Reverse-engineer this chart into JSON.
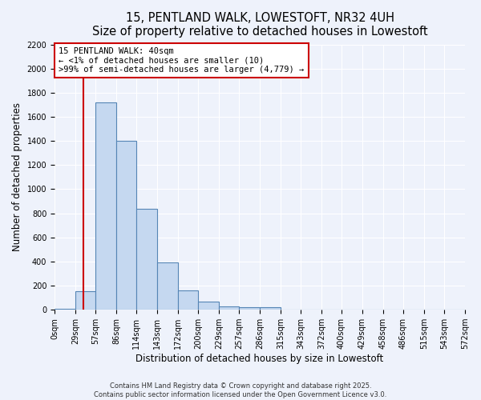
{
  "title_line1": "15, PENTLAND WALK, LOWESTOFT, NR32 4UH",
  "title_line2": "Size of property relative to detached houses in Lowestoft",
  "xlabel": "Distribution of detached houses by size in Lowestoft",
  "ylabel": "Number of detached properties",
  "bin_edges": [
    0,
    29,
    57,
    86,
    114,
    143,
    172,
    200,
    229,
    257,
    286,
    315,
    343,
    372,
    400,
    429,
    458,
    486,
    515,
    543,
    572
  ],
  "bar_heights": [
    10,
    155,
    1720,
    1400,
    835,
    395,
    160,
    65,
    30,
    20,
    20,
    0,
    0,
    0,
    0,
    0,
    0,
    0,
    0,
    0
  ],
  "bar_color": "#c5d8f0",
  "bar_edge_color": "#5585b5",
  "property_size": 40,
  "red_line_color": "#cc0000",
  "ylim": [
    0,
    2200
  ],
  "yticks": [
    0,
    200,
    400,
    600,
    800,
    1000,
    1200,
    1400,
    1600,
    1800,
    2000,
    2200
  ],
  "annotation_text": "15 PENTLAND WALK: 40sqm\n← <1% of detached houses are smaller (10)\n>99% of semi-detached houses are larger (4,779) →",
  "annotation_box_color": "#ffffff",
  "annotation_box_edge_color": "#cc0000",
  "background_color": "#eef2fb",
  "grid_color": "#ffffff",
  "footer_line1": "Contains HM Land Registry data © Crown copyright and database right 2025.",
  "footer_line2": "Contains public sector information licensed under the Open Government Licence v3.0.",
  "title_fontsize": 10.5,
  "subtitle_fontsize": 9.5,
  "axis_label_fontsize": 8.5,
  "tick_fontsize": 7,
  "annotation_fontsize": 7.5,
  "footer_fontsize": 6
}
